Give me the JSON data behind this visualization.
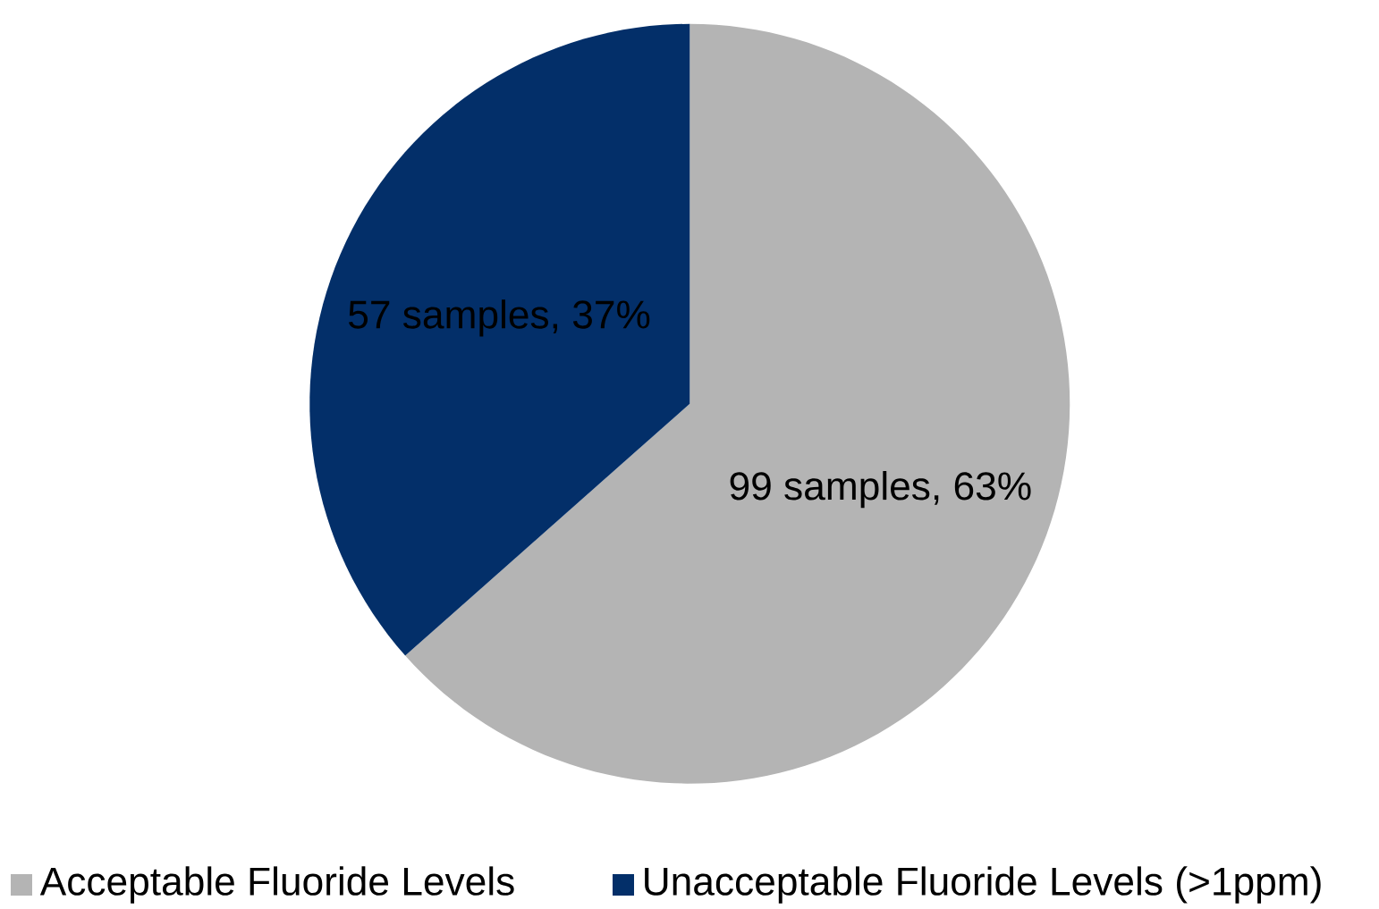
{
  "chart_data": {
    "type": "pie",
    "categories": [
      "Acceptable Fluoride Levels",
      "Unacceptable Fluoride Levels (>1ppm)"
    ],
    "values": [
      99,
      57
    ],
    "colors": [
      "#b4b4b4",
      "#032f69"
    ],
    "value_labels": [
      "99 samples, 63%",
      "57 samples, 37%"
    ],
    "legend": "bottom"
  }
}
